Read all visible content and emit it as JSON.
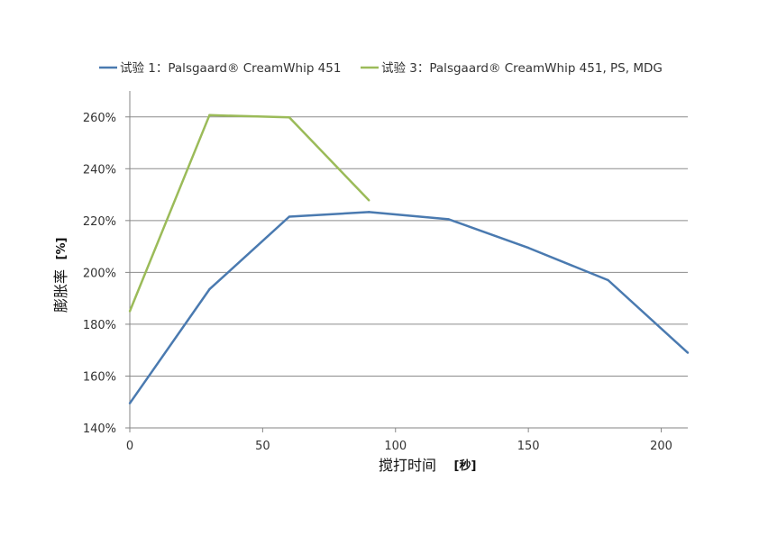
{
  "chart_data": {
    "type": "line",
    "xlabel": "搅打时间",
    "xlabel_unit": "[秒]",
    "ylabel": "膨胀率",
    "ylabel_unit": "[%]",
    "xlim": [
      0,
      210
    ],
    "ylim": [
      140,
      270
    ],
    "x_ticks": [
      0,
      50,
      100,
      150,
      200
    ],
    "y_ticks": [
      140,
      160,
      180,
      200,
      220,
      240,
      260
    ],
    "y_tick_format": "percent",
    "grid": "horizontal",
    "legend_position": "top",
    "series": [
      {
        "name": "试验 1：Palsgaard® CreamWhip 451",
        "color": "#4a7ab0",
        "x": [
          0,
          30,
          60,
          90,
          120,
          150,
          180,
          210
        ],
        "y": [
          149.5,
          193.5,
          221.5,
          223.3,
          220.5,
          209.5,
          197,
          169
        ]
      },
      {
        "name": "试验 3：Palsgaard® CreamWhip 451, PS, MDG",
        "color": "#9bbb59",
        "x": [
          0,
          30,
          60,
          90
        ],
        "y": [
          185,
          260.7,
          259.8,
          227.8
        ]
      }
    ]
  }
}
